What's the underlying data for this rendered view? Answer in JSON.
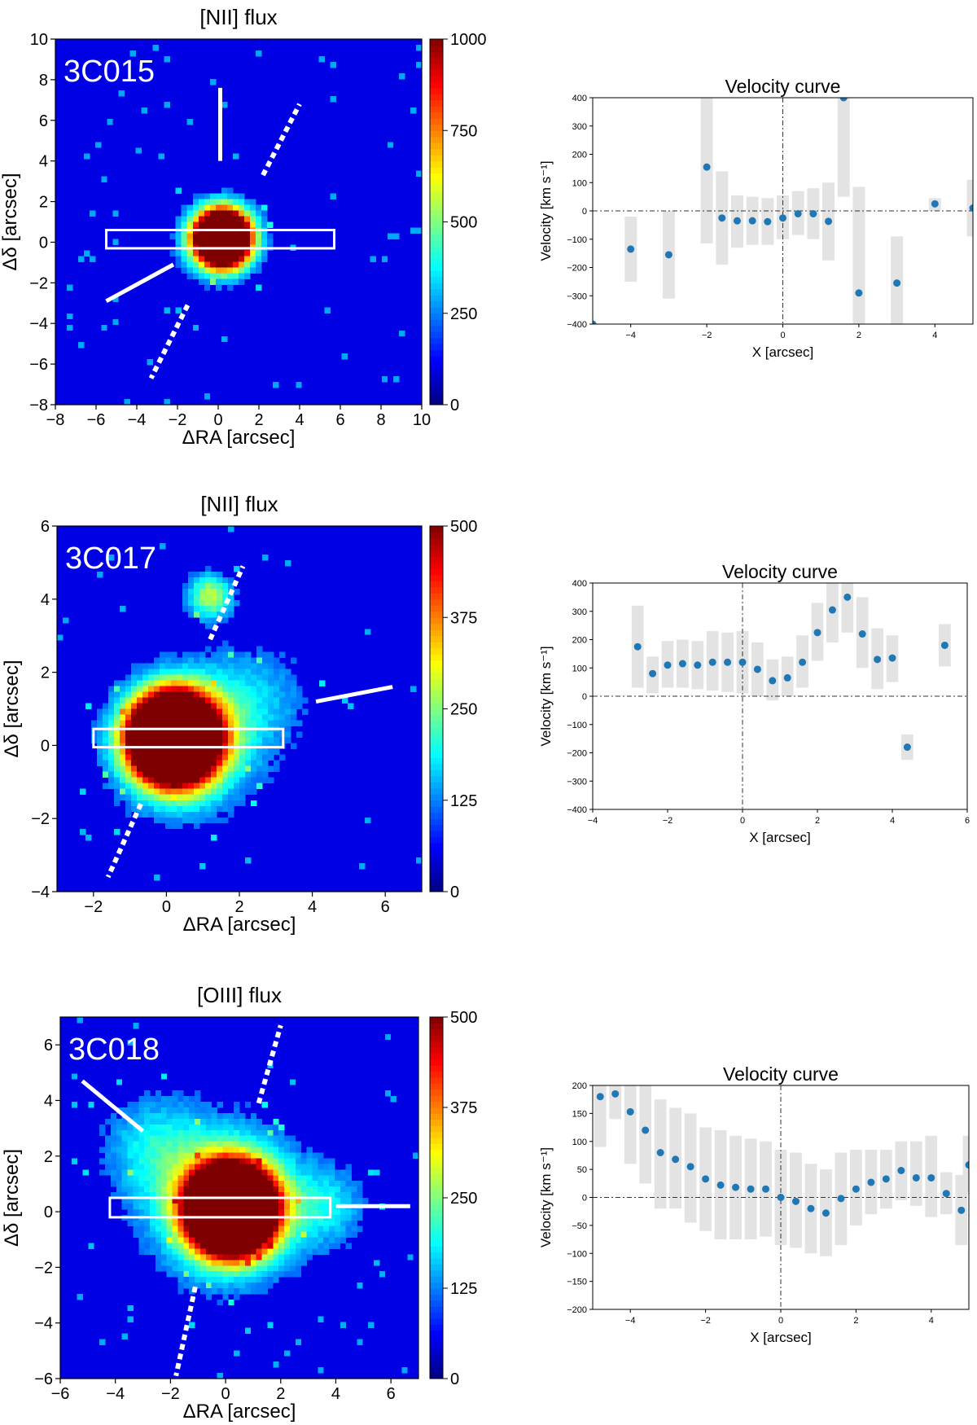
{
  "colormap": {
    "name": "jet",
    "stops": [
      "#00007f",
      "#0000ff",
      "#007fff",
      "#00ffff",
      "#7fff7f",
      "#ffff00",
      "#ff7f00",
      "#ff0000",
      "#7f0000"
    ]
  },
  "colors": {
    "point": "#1f77b4",
    "errorbar": "#e3e3e3",
    "overlay": "#ffffff",
    "axis": "#000000",
    "guide": "#333333"
  },
  "chart_data": [
    {
      "id": "3c015-flux",
      "type": "heatmap",
      "title": "[NII] flux",
      "source_label": "3C015",
      "xlabel": "ΔRA [arcsec]",
      "ylabel": "Δδ [arcsec]",
      "xlim": [
        -8,
        10
      ],
      "ylim": [
        -8,
        10
      ],
      "xticks": [
        -8,
        -6,
        -4,
        -2,
        0,
        2,
        4,
        6,
        8,
        10
      ],
      "yticks": [
        -8,
        -6,
        -4,
        -2,
        0,
        2,
        4,
        6,
        8,
        10
      ],
      "colorbar": {
        "range": [
          0,
          1000
        ],
        "ticks": [
          0,
          250,
          500,
          750,
          1000
        ]
      },
      "emission": [
        {
          "x": 0.2,
          "y": 0.2,
          "peak": 2600,
          "sigma": 0.9
        },
        {
          "x": 0.0,
          "y": 0.0,
          "peak": 170,
          "sigma": 1.9
        }
      ],
      "slit": {
        "x": [
          -5.5,
          5.7
        ],
        "y": [
          -0.3,
          0.6
        ]
      },
      "markers": [
        {
          "style": "solid",
          "from": [
            0.1,
            4.0
          ],
          "to": [
            0.1,
            7.6
          ]
        },
        {
          "style": "solid",
          "from": [
            -2.2,
            -1.1
          ],
          "to": [
            -5.5,
            -2.9
          ]
        },
        {
          "style": "dashed",
          "from": [
            2.2,
            3.3
          ],
          "to": [
            4.0,
            6.8
          ]
        },
        {
          "style": "dashed",
          "from": [
            -1.5,
            -3.1
          ],
          "to": [
            -3.3,
            -6.7
          ]
        }
      ]
    },
    {
      "id": "3c015-velocity",
      "type": "scatter",
      "title": "Velocity curve",
      "xlabel": "X [arcsec]",
      "ylabel": "Velocity [km s⁻¹]",
      "xlim": [
        -5,
        5
      ],
      "ylim": [
        -400,
        400
      ],
      "xticks": [
        -4,
        -2,
        0,
        2,
        4
      ],
      "yticks": [
        -400,
        -300,
        -200,
        -100,
        0,
        100,
        200,
        300,
        400
      ],
      "points": [
        {
          "x": -5.0,
          "y": -400,
          "lo": -400,
          "hi": -400
        },
        {
          "x": -4.0,
          "y": -135,
          "lo": -250,
          "hi": -20
        },
        {
          "x": -3.0,
          "y": -155,
          "lo": -310,
          "hi": 0
        },
        {
          "x": -2.0,
          "y": 155,
          "lo": -115,
          "hi": 400
        },
        {
          "x": -1.6,
          "y": -25,
          "lo": -190,
          "hi": 140
        },
        {
          "x": -1.2,
          "y": -35,
          "lo": -130,
          "hi": 55
        },
        {
          "x": -0.8,
          "y": -35,
          "lo": -120,
          "hi": 50
        },
        {
          "x": -0.4,
          "y": -38,
          "lo": -120,
          "hi": 45
        },
        {
          "x": 0.0,
          "y": -25,
          "lo": -100,
          "hi": 55
        },
        {
          "x": 0.4,
          "y": -10,
          "lo": -85,
          "hi": 70
        },
        {
          "x": 0.8,
          "y": -10,
          "lo": -100,
          "hi": 80
        },
        {
          "x": 1.2,
          "y": -37,
          "lo": -175,
          "hi": 100
        },
        {
          "x": 1.6,
          "y": 400,
          "lo": 50,
          "hi": 400
        },
        {
          "x": 2.0,
          "y": -290,
          "lo": -400,
          "hi": 85
        },
        {
          "x": 3.0,
          "y": -255,
          "lo": -400,
          "hi": -90
        },
        {
          "x": 4.0,
          "y": 25,
          "lo": 0,
          "hi": 45
        },
        {
          "x": 5.0,
          "y": 10,
          "lo": -90,
          "hi": 110
        }
      ]
    },
    {
      "id": "3c017-flux",
      "type": "heatmap",
      "title": "[NII] flux",
      "source_label": "3C017",
      "xlabel": "ΔRA [arcsec]",
      "ylabel": "Δδ [arcsec]",
      "xlim": [
        -3,
        7
      ],
      "ylim": [
        -4,
        6
      ],
      "xticks": [
        -2,
        0,
        2,
        4,
        6
      ],
      "yticks": [
        -4,
        -2,
        0,
        2,
        4,
        6
      ],
      "colorbar": {
        "range": [
          0,
          500
        ],
        "ticks": [
          0,
          125,
          250,
          375,
          500
        ]
      },
      "emission": [
        {
          "x": 0.2,
          "y": 0.2,
          "peak": 1600,
          "sigma": 0.75
        },
        {
          "x": 0.5,
          "y": 0.0,
          "peak": 190,
          "sigma": 1.5
        },
        {
          "x": 2.6,
          "y": 1.4,
          "peak": 90,
          "sigma": 1.2
        },
        {
          "x": 1.2,
          "y": 4.1,
          "peak": 250,
          "sigma": 0.45
        }
      ],
      "slit": {
        "x": [
          -2.0,
          3.2
        ],
        "y": [
          -0.05,
          0.45
        ]
      },
      "markers": [
        {
          "style": "solid",
          "from": [
            4.1,
            1.2
          ],
          "to": [
            6.2,
            1.6
          ]
        },
        {
          "style": "dashed",
          "from": [
            1.2,
            2.9
          ],
          "to": [
            2.1,
            4.9
          ]
        },
        {
          "style": "dashed",
          "from": [
            -0.7,
            -1.6
          ],
          "to": [
            -1.6,
            -3.6
          ]
        }
      ]
    },
    {
      "id": "3c017-velocity",
      "type": "scatter",
      "title": "Velocity curve",
      "xlabel": "X [arcsec]",
      "ylabel": "Velocity [km s⁻¹]",
      "xlim": [
        -4,
        6
      ],
      "ylim": [
        -400,
        400
      ],
      "xticks": [
        -4,
        -2,
        0,
        2,
        4,
        6
      ],
      "yticks": [
        -400,
        -300,
        -200,
        -100,
        0,
        100,
        200,
        300,
        400
      ],
      "points": [
        {
          "x": -2.8,
          "y": 175,
          "lo": 30,
          "hi": 320
        },
        {
          "x": -2.4,
          "y": 80,
          "lo": 10,
          "hi": 140
        },
        {
          "x": -2.0,
          "y": 110,
          "lo": 30,
          "hi": 195
        },
        {
          "x": -1.6,
          "y": 115,
          "lo": 30,
          "hi": 200
        },
        {
          "x": -1.2,
          "y": 110,
          "lo": 25,
          "hi": 195
        },
        {
          "x": -0.8,
          "y": 120,
          "lo": 20,
          "hi": 230
        },
        {
          "x": -0.4,
          "y": 120,
          "lo": 15,
          "hi": 225
        },
        {
          "x": 0.0,
          "y": 120,
          "lo": 10,
          "hi": 230
        },
        {
          "x": 0.4,
          "y": 95,
          "lo": 0,
          "hi": 190
        },
        {
          "x": 0.8,
          "y": 55,
          "lo": -15,
          "hi": 130
        },
        {
          "x": 1.2,
          "y": 65,
          "lo": 0,
          "hi": 140
        },
        {
          "x": 1.6,
          "y": 120,
          "lo": 30,
          "hi": 215
        },
        {
          "x": 2.0,
          "y": 225,
          "lo": 125,
          "hi": 330
        },
        {
          "x": 2.4,
          "y": 305,
          "lo": 190,
          "hi": 400
        },
        {
          "x": 2.8,
          "y": 350,
          "lo": 225,
          "hi": 400
        },
        {
          "x": 3.2,
          "y": 220,
          "lo": 100,
          "hi": 350
        },
        {
          "x": 3.6,
          "y": 130,
          "lo": 25,
          "hi": 240
        },
        {
          "x": 4.0,
          "y": 135,
          "lo": 50,
          "hi": 215
        },
        {
          "x": 4.4,
          "y": -180,
          "lo": -225,
          "hi": -135
        },
        {
          "x": 5.4,
          "y": 180,
          "lo": 105,
          "hi": 255
        }
      ]
    },
    {
      "id": "3c018-flux",
      "type": "heatmap",
      "title": "[OIII] flux",
      "source_label": "3C018",
      "xlabel": "ΔRA [arcsec]",
      "ylabel": "Δδ [arcsec]",
      "xlim": [
        -6,
        7
      ],
      "ylim": [
        -6,
        7
      ],
      "xticks": [
        -6,
        -4,
        -2,
        0,
        2,
        4,
        6
      ],
      "yticks": [
        -6,
        -4,
        -2,
        0,
        2,
        4,
        6
      ],
      "colorbar": {
        "range": [
          0,
          500
        ],
        "ticks": [
          0,
          125,
          250,
          375,
          500
        ]
      },
      "emission": [
        {
          "x": 0.2,
          "y": 0.1,
          "peak": 1700,
          "sigma": 0.95
        },
        {
          "x": 0.0,
          "y": 0.3,
          "peak": 240,
          "sigma": 2.1
        },
        {
          "x": -2.8,
          "y": 2.5,
          "peak": 110,
          "sigma": 1.4
        },
        {
          "x": 3.8,
          "y": 0.2,
          "peak": 110,
          "sigma": 1.1
        }
      ],
      "slit": {
        "x": [
          -4.2,
          3.8
        ],
        "y": [
          -0.2,
          0.5
        ]
      },
      "markers": [
        {
          "style": "solid",
          "from": [
            -3.0,
            2.9
          ],
          "to": [
            -5.2,
            4.7
          ]
        },
        {
          "style": "solid",
          "from": [
            4.0,
            0.2
          ],
          "to": [
            6.7,
            0.2
          ]
        },
        {
          "style": "dashed",
          "from": [
            1.2,
            3.9
          ],
          "to": [
            2.0,
            6.7
          ]
        },
        {
          "style": "dashed",
          "from": [
            -1.1,
            -2.7
          ],
          "to": [
            -1.8,
            -5.9
          ]
        }
      ]
    },
    {
      "id": "3c018-velocity",
      "type": "scatter",
      "title": "Velocity curve",
      "xlabel": "X [arcsec]",
      "ylabel": "Velocity [km s⁻¹]",
      "xlim": [
        -5,
        5
      ],
      "ylim": [
        -200,
        200
      ],
      "xticks": [
        -4,
        -2,
        0,
        2,
        4
      ],
      "yticks": [
        -200,
        -150,
        -100,
        -50,
        0,
        50,
        100,
        150,
        200
      ],
      "points": [
        {
          "x": -4.8,
          "y": 180,
          "lo": 90,
          "hi": 200
        },
        {
          "x": -4.4,
          "y": 185,
          "lo": 140,
          "hi": 200
        },
        {
          "x": -4.0,
          "y": 153,
          "lo": 60,
          "hi": 200
        },
        {
          "x": -3.6,
          "y": 120,
          "lo": 25,
          "hi": 200
        },
        {
          "x": -3.2,
          "y": 80,
          "lo": -20,
          "hi": 175
        },
        {
          "x": -2.8,
          "y": 68,
          "lo": -20,
          "hi": 160
        },
        {
          "x": -2.4,
          "y": 55,
          "lo": -45,
          "hi": 150
        },
        {
          "x": -2.0,
          "y": 33,
          "lo": -60,
          "hi": 125
        },
        {
          "x": -1.6,
          "y": 22,
          "lo": -75,
          "hi": 120
        },
        {
          "x": -1.2,
          "y": 18,
          "lo": -75,
          "hi": 110
        },
        {
          "x": -0.8,
          "y": 15,
          "lo": -75,
          "hi": 105
        },
        {
          "x": -0.4,
          "y": 15,
          "lo": -70,
          "hi": 100
        },
        {
          "x": 0.0,
          "y": 0,
          "lo": -85,
          "hi": 85
        },
        {
          "x": 0.4,
          "y": -7,
          "lo": -90,
          "hi": 80
        },
        {
          "x": 0.8,
          "y": -20,
          "lo": -100,
          "hi": 60
        },
        {
          "x": 1.2,
          "y": -28,
          "lo": -105,
          "hi": 50
        },
        {
          "x": 1.6,
          "y": -2,
          "lo": -85,
          "hi": 80
        },
        {
          "x": 2.0,
          "y": 15,
          "lo": -50,
          "hi": 85
        },
        {
          "x": 2.4,
          "y": 27,
          "lo": -30,
          "hi": 85
        },
        {
          "x": 2.8,
          "y": 33,
          "lo": -20,
          "hi": 85
        },
        {
          "x": 3.2,
          "y": 48,
          "lo": -5,
          "hi": 100
        },
        {
          "x": 3.6,
          "y": 35,
          "lo": -15,
          "hi": 100
        },
        {
          "x": 4.0,
          "y": 35,
          "lo": -35,
          "hi": 110
        },
        {
          "x": 4.4,
          "y": 7,
          "lo": -30,
          "hi": 45
        },
        {
          "x": 4.8,
          "y": -23,
          "lo": -85,
          "hi": 40
        },
        {
          "x": 5.0,
          "y": 58,
          "lo": 10,
          "hi": 110
        }
      ]
    }
  ]
}
